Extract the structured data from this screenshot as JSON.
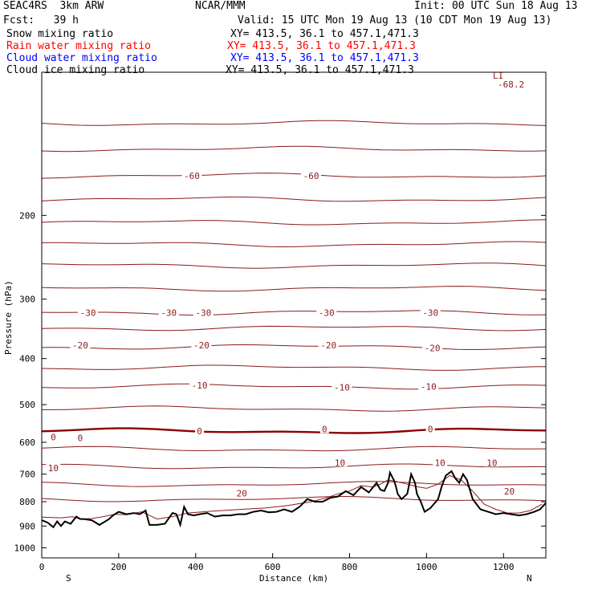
{
  "header": {
    "model": "SEAC4RS  3km ARW",
    "center": "NCAR/MMM",
    "init": "Init: 00 UTC Sun 18 Aug 13",
    "fcst": "Fcst:   39 h",
    "valid": "Valid: 15 UTC Mon 19 Aug 13 (10 CDT Mon 19 Aug 13)"
  },
  "fields": [
    {
      "label": "Snow mixing ratio",
      "xy": "XY= 413.5, 36.1 to 457.1,471.3",
      "color": "#000000"
    },
    {
      "label": "Rain water mixing ratio",
      "xy": "XY= 413.5, 36.1 to 457.1,471.3",
      "color": "#ff0000"
    },
    {
      "label": "Cloud water mixing ratio",
      "xy": "XY= 413.5, 36.1 to 457.1,471.3",
      "color": "#0000ff"
    },
    {
      "label": "Cloud ice mixing ratio",
      "xy": "XY= 413.5, 36.1 to 457.1,471.3",
      "color": "#000000"
    }
  ],
  "li": {
    "label": "LI",
    "value": "-68.2"
  },
  "colors": {
    "isotherm": "#8b1a1a",
    "zero_isotherm": "#8b0000",
    "terrain": "#000000",
    "frame": "#000000"
  },
  "chart_data": {
    "type": "line",
    "xlabel": "Distance (km)",
    "ylabel": "Pressure (hPa)",
    "x_ticks": [
      0,
      200,
      400,
      600,
      800,
      1000,
      1200
    ],
    "y_ticks": [
      200,
      300,
      400,
      500,
      600,
      700,
      800,
      900,
      1000
    ],
    "xlim": [
      0,
      1310
    ],
    "ylim": [
      1050,
      100
    ],
    "y_scale": "log",
    "x_end_labels": {
      "left": "S",
      "right": "N"
    },
    "isotherms": [
      {
        "value": -70,
        "pressure": 128
      },
      {
        "value": -65,
        "pressure": 145
      },
      {
        "value": -60,
        "pressure": 165
      },
      {
        "value": -55,
        "pressure": 185
      },
      {
        "value": -50,
        "pressure": 207
      },
      {
        "value": -45,
        "pressure": 230
      },
      {
        "value": -40,
        "pressure": 255
      },
      {
        "value": -35,
        "pressure": 285
      },
      {
        "value": -30,
        "pressure": 320
      },
      {
        "value": -25,
        "pressure": 345
      },
      {
        "value": -20,
        "pressure": 378
      },
      {
        "value": -15,
        "pressure": 418
      },
      {
        "value": -10,
        "pressure": 458
      },
      {
        "value": -5,
        "pressure": 510
      },
      {
        "value": 0,
        "pressure": 568
      },
      {
        "value": 5,
        "pressure": 620
      },
      {
        "value": 10,
        "pressure": 675
      },
      {
        "value": 15,
        "pressure": 735
      },
      {
        "value": 20,
        "pressure": 790
      }
    ],
    "contour_labels": [
      {
        "text": "-60",
        "x": 390,
        "p": 165
      },
      {
        "text": "-60",
        "x": 700,
        "p": 165
      },
      {
        "text": "-30",
        "x": 120,
        "p": 320
      },
      {
        "text": "-30",
        "x": 330,
        "p": 320
      },
      {
        "text": "-30",
        "x": 420,
        "p": 320
      },
      {
        "text": "-30",
        "x": 740,
        "p": 320
      },
      {
        "text": "-30",
        "x": 1010,
        "p": 320
      },
      {
        "text": "-20",
        "x": 100,
        "p": 375
      },
      {
        "text": "-20",
        "x": 415,
        "p": 375
      },
      {
        "text": "-20",
        "x": 745,
        "p": 375
      },
      {
        "text": "-20",
        "x": 1015,
        "p": 380
      },
      {
        "text": "-10",
        "x": 410,
        "p": 455
      },
      {
        "text": "-10",
        "x": 780,
        "p": 460
      },
      {
        "text": "-10",
        "x": 1005,
        "p": 458
      },
      {
        "text": "0",
        "x": 30,
        "p": 585
      },
      {
        "text": "0",
        "x": 100,
        "p": 587
      },
      {
        "text": "0",
        "x": 410,
        "p": 568
      },
      {
        "text": "0",
        "x": 735,
        "p": 563
      },
      {
        "text": "0",
        "x": 1010,
        "p": 563
      },
      {
        "text": "10",
        "x": 30,
        "p": 680
      },
      {
        "text": "10",
        "x": 775,
        "p": 662
      },
      {
        "text": "10",
        "x": 1035,
        "p": 662
      },
      {
        "text": "10",
        "x": 1170,
        "p": 662
      },
      {
        "text": "20",
        "x": 520,
        "p": 768
      },
      {
        "text": "20",
        "x": 1215,
        "p": 760
      }
    ],
    "terrain": {
      "x": [
        0,
        15,
        30,
        40,
        50,
        60,
        75,
        90,
        100,
        110,
        130,
        150,
        165,
        175,
        185,
        200,
        220,
        240,
        255,
        270,
        280,
        290,
        300,
        320,
        340,
        350,
        360,
        370,
        380,
        395,
        410,
        430,
        450,
        470,
        490,
        510,
        530,
        550,
        570,
        590,
        610,
        630,
        650,
        670,
        690,
        710,
        730,
        750,
        770,
        790,
        810,
        830,
        850,
        870,
        880,
        890,
        900,
        905,
        915,
        920,
        925,
        935,
        950,
        960,
        970,
        975,
        985,
        995,
        1010,
        1030,
        1040,
        1050,
        1065,
        1075,
        1085,
        1095,
        1105,
        1120,
        1140,
        1160,
        1180,
        1200,
        1220,
        1240,
        1260,
        1280,
        1295,
        1310
      ],
      "p": [
        875,
        885,
        905,
        880,
        900,
        880,
        890,
        860,
        870,
        870,
        875,
        895,
        880,
        870,
        855,
        840,
        850,
        845,
        850,
        835,
        895,
        895,
        895,
        890,
        845,
        850,
        895,
        820,
        850,
        855,
        850,
        845,
        860,
        855,
        855,
        850,
        850,
        840,
        835,
        842,
        840,
        830,
        840,
        820,
        790,
        800,
        800,
        785,
        780,
        760,
        775,
        745,
        765,
        730,
        755,
        760,
        730,
        695,
        720,
        740,
        770,
        790,
        770,
        700,
        730,
        770,
        800,
        840,
        825,
        790,
        740,
        705,
        690,
        715,
        730,
        700,
        720,
        790,
        830,
        840,
        850,
        845,
        850,
        855,
        850,
        840,
        830,
        805
      ]
    },
    "isotherm_20_near_surface": {
      "x": [
        0,
        50,
        80,
        100,
        130,
        160,
        190,
        220,
        260,
        300,
        340,
        380,
        420,
        470,
        520,
        580,
        640,
        700,
        740,
        770,
        800,
        830,
        860,
        880,
        900,
        920,
        950,
        980,
        1000,
        1030,
        1060,
        1090,
        1120,
        1150,
        1180,
        1210,
        1240,
        1270,
        1300
      ],
      "p": [
        862,
        865,
        860,
        870,
        868,
        860,
        850,
        852,
        840,
        870,
        860,
        845,
        840,
        835,
        830,
        825,
        815,
        800,
        785,
        770,
        760,
        740,
        745,
        735,
        720,
        725,
        735,
        745,
        750,
        735,
        705,
        720,
        760,
        810,
        830,
        845,
        845,
        835,
        810
      ]
    }
  }
}
